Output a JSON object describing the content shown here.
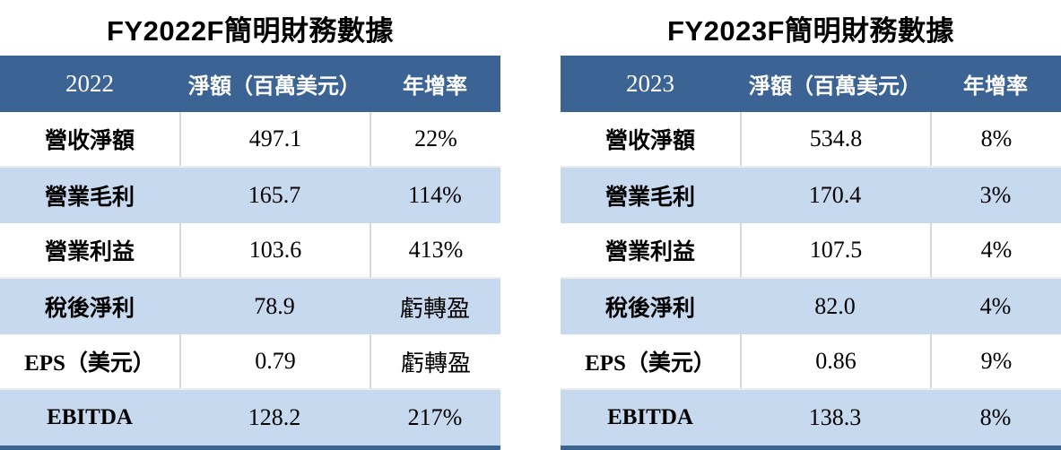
{
  "colors": {
    "header_bg": "#3B6394",
    "alt_row_bg": "#C7D9EE",
    "divider": "#D9D9D9",
    "header_text": "#FFFFFF",
    "body_text": "#000000"
  },
  "tables": [
    {
      "title": "FY2022F簡明財務數據",
      "headers": {
        "year": "2022",
        "net_amount": "淨額（百萬美元）",
        "yoy": "年增率"
      },
      "rows": [
        {
          "label": "營收淨額",
          "value": "497.1",
          "yoy": "22%"
        },
        {
          "label": "營業毛利",
          "value": "165.7",
          "yoy": "114%"
        },
        {
          "label": "營業利益",
          "value": "103.6",
          "yoy": "413%"
        },
        {
          "label": "稅後淨利",
          "value": "78.9",
          "yoy": "虧轉盈"
        },
        {
          "label": "EPS（美元）",
          "value": "0.79",
          "yoy": "虧轉盈"
        },
        {
          "label": "EBITDA",
          "value": "128.2",
          "yoy": "217%"
        }
      ]
    },
    {
      "title": "FY2023F簡明財務數據",
      "headers": {
        "year": "2023",
        "net_amount": "淨額（百萬美元）",
        "yoy": "年增率"
      },
      "rows": [
        {
          "label": "營收淨額",
          "value": "534.8",
          "yoy": "8%"
        },
        {
          "label": "營業毛利",
          "value": "170.4",
          "yoy": "3%"
        },
        {
          "label": "營業利益",
          "value": "107.5",
          "yoy": "4%"
        },
        {
          "label": "稅後淨利",
          "value": "82.0",
          "yoy": "4%"
        },
        {
          "label": "EPS（美元）",
          "value": "0.86",
          "yoy": "9%"
        },
        {
          "label": "EBITDA",
          "value": "138.3",
          "yoy": "8%"
        }
      ]
    }
  ],
  "chart_data": [
    {
      "type": "table",
      "title": "FY2022F簡明財務數據",
      "columns": [
        "2022",
        "淨額（百萬美元）",
        "年增率"
      ],
      "rows": [
        [
          "營收淨額",
          497.1,
          "22%"
        ],
        [
          "營業毛利",
          165.7,
          "114%"
        ],
        [
          "營業利益",
          103.6,
          "413%"
        ],
        [
          "稅後淨利",
          78.9,
          "虧轉盈"
        ],
        [
          "EPS（美元）",
          0.79,
          "虧轉盈"
        ],
        [
          "EBITDA",
          128.2,
          "217%"
        ]
      ]
    },
    {
      "type": "table",
      "title": "FY2023F簡明財務數據",
      "columns": [
        "2023",
        "淨額（百萬美元）",
        "年增率"
      ],
      "rows": [
        [
          "營收淨額",
          534.8,
          "8%"
        ],
        [
          "營業毛利",
          170.4,
          "3%"
        ],
        [
          "營業利益",
          107.5,
          "4%"
        ],
        [
          "稅後淨利",
          82.0,
          "4%"
        ],
        [
          "EPS（美元）",
          0.86,
          "9%"
        ],
        [
          "EBITDA",
          138.3,
          "8%"
        ]
      ]
    }
  ]
}
